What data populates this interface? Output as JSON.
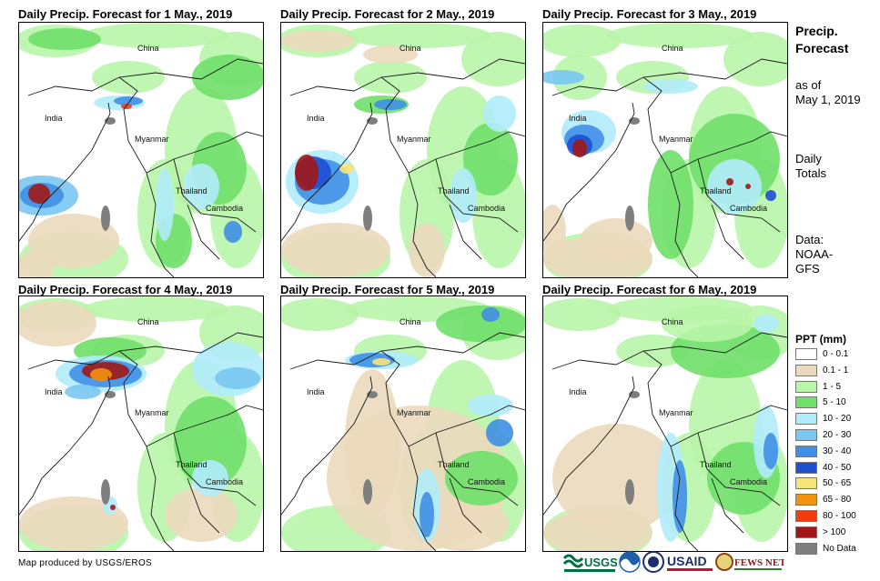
{
  "panels": [
    {
      "title": "Daily Precip. Forecast for 1 May., 2019",
      "labels": {
        "china": "China",
        "india": "India",
        "myanmar": "Myanmar",
        "thailand": "Thailand",
        "cambodia": "Cambodia"
      }
    },
    {
      "title": "Daily Precip. Forecast for 2 May., 2019",
      "labels": {
        "china": "China",
        "india": "India",
        "myanmar": "Myanmar",
        "thailand": "Thailand",
        "cambodia": "Cambodia"
      }
    },
    {
      "title": "Daily Precip. Forecast for 3 May., 2019",
      "labels": {
        "china": "China",
        "india": "India",
        "myanmar": "Myanmar",
        "thailand": "Thailand",
        "cambodia": "Cambodia"
      }
    },
    {
      "title": "Daily Precip. Forecast for 4 May., 2019",
      "labels": {
        "china": "China",
        "india": "India",
        "myanmar": "Myanmar",
        "thailand": "Thailand",
        "cambodia": "Cambodia"
      }
    },
    {
      "title": "Daily Precip. Forecast for 5 May., 2019",
      "labels": {
        "china": "China",
        "india": "India",
        "myanmar": "Myanmar",
        "thailand": "Thailand",
        "cambodia": "Cambodia"
      }
    },
    {
      "title": "Daily Precip. Forecast for 6 May., 2019",
      "labels": {
        "china": "China",
        "india": "India",
        "myanmar": "Myanmar",
        "thailand": "Thailand",
        "cambodia": "Cambodia"
      }
    }
  ],
  "side": {
    "heading_line1": "Precip.",
    "heading_line2": "Forecast",
    "asof_line1": "as of",
    "asof_line2": "May 1, 2019",
    "daily_line1": "Daily",
    "daily_line2": "Totals",
    "data_line1": "Data:",
    "data_line2": "NOAA-",
    "data_line3": "GFS"
  },
  "legend": {
    "title": "PPT (mm)",
    "items": [
      {
        "label": "0 - 0.1",
        "color": "#ffffff"
      },
      {
        "label": "0.1 - 1",
        "color": "#ebd9bd"
      },
      {
        "label": "1 - 5",
        "color": "#b8f5a8"
      },
      {
        "label": "5 - 10",
        "color": "#6fe06a"
      },
      {
        "label": "10 - 20",
        "color": "#b0ecfb"
      },
      {
        "label": "20 - 30",
        "color": "#79c7f2"
      },
      {
        "label": "30 - 40",
        "color": "#3f8fe6"
      },
      {
        "label": "40 - 50",
        "color": "#1f4fd2"
      },
      {
        "label": "50 - 65",
        "color": "#f6e37a"
      },
      {
        "label": "65 - 80",
        "color": "#f2930d"
      },
      {
        "label": "80 - 100",
        "color": "#f23b0f"
      },
      {
        "label": "> 100",
        "color": "#a11717"
      },
      {
        "label": "No Data",
        "color": "#7f7f7f"
      }
    ]
  },
  "footer": {
    "credit": "Map produced by USGS/EROS",
    "logo_usgs": "USGS",
    "logo_usaid": "USAID",
    "logo_fews": "FEWS NET"
  }
}
